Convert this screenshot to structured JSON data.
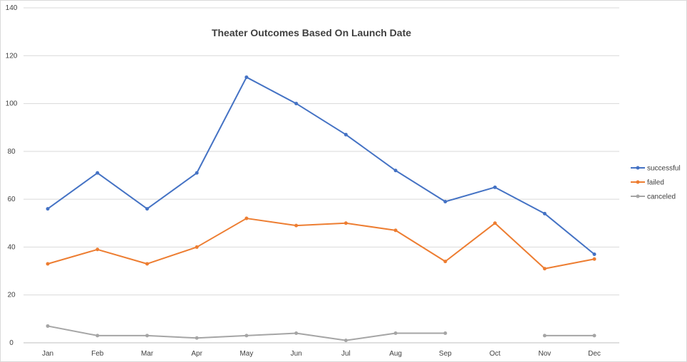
{
  "chart_data": {
    "type": "line",
    "title": "Theater Outcomes Based  On Launch Date",
    "xlabel": "",
    "ylabel": "",
    "categories": [
      "Jan",
      "Feb",
      "Mar",
      "Apr",
      "May",
      "Jun",
      "Jul",
      "Aug",
      "Sep",
      "Oct",
      "Nov",
      "Dec"
    ],
    "yticks": [
      "0",
      "20",
      "40",
      "60",
      "80",
      "100",
      "120",
      "140"
    ],
    "ylim": [
      0,
      140
    ],
    "grid": true,
    "legend_position": "right",
    "series": [
      {
        "name": "successful",
        "color": "#4472c4",
        "values": [
          56,
          71,
          56,
          71,
          111,
          100,
          87,
          72,
          59,
          65,
          54,
          37
        ]
      },
      {
        "name": "failed",
        "color": "#ed7d31",
        "values": [
          33,
          39,
          33,
          40,
          52,
          49,
          50,
          47,
          34,
          50,
          31,
          35
        ]
      },
      {
        "name": "canceled",
        "color": "#a5a5a5",
        "values": [
          7,
          3,
          3,
          2,
          3,
          4,
          1,
          4,
          4,
          null,
          3,
          3
        ]
      }
    ]
  }
}
